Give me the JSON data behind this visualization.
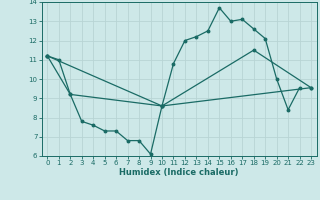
{
  "xlabel": "Humidex (Indice chaleur)",
  "xlim": [
    -0.5,
    23.5
  ],
  "ylim": [
    6,
    14
  ],
  "xticks": [
    0,
    1,
    2,
    3,
    4,
    5,
    6,
    7,
    8,
    9,
    10,
    11,
    12,
    13,
    14,
    15,
    16,
    17,
    18,
    19,
    20,
    21,
    22,
    23
  ],
  "yticks": [
    6,
    7,
    8,
    9,
    10,
    11,
    12,
    13,
    14
  ],
  "bg_color": "#cde8e8",
  "line_color": "#1a6b65",
  "grid_color": "#b8d4d4",
  "line1_x": [
    0,
    1,
    2,
    3,
    4,
    5,
    6,
    7,
    8,
    9,
    10,
    11,
    12,
    13,
    14,
    15,
    16,
    17,
    18,
    19,
    20,
    21,
    22
  ],
  "line1_y": [
    11.2,
    11.0,
    9.2,
    7.8,
    7.6,
    7.3,
    7.3,
    6.8,
    6.8,
    6.1,
    8.6,
    10.8,
    12.0,
    12.2,
    12.5,
    13.7,
    13.0,
    13.1,
    12.6,
    12.1,
    10.0,
    8.4,
    9.55
  ],
  "line2_x": [
    0,
    2,
    10,
    23
  ],
  "line2_y": [
    11.2,
    9.2,
    8.6,
    9.55
  ],
  "line3_x": [
    0,
    10,
    18,
    23
  ],
  "line3_y": [
    11.2,
    8.6,
    11.5,
    9.55
  ]
}
